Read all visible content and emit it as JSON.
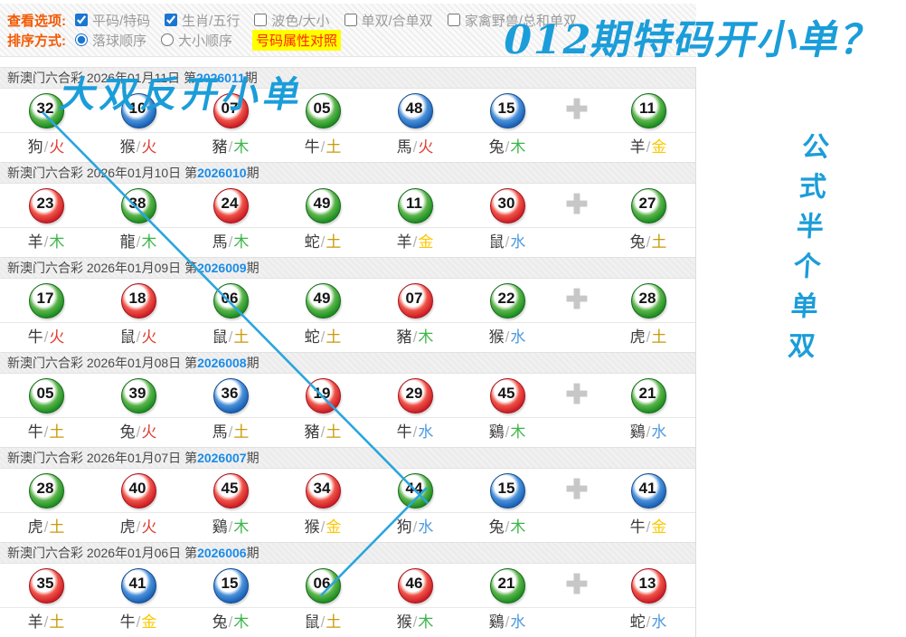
{
  "options": {
    "view_caption": "查看选项:",
    "view_items": [
      {
        "label": "平码/特码",
        "checked": true
      },
      {
        "label": "生肖/五行",
        "checked": true
      },
      {
        "label": "波色/大小",
        "checked": false
      },
      {
        "label": "单双/合单双",
        "checked": false
      },
      {
        "label": "家禽野兽/总和单双",
        "checked": false
      }
    ],
    "sort_caption": "排序方式:",
    "sort_items": [
      {
        "label": "落球顺序",
        "selected": true
      },
      {
        "label": "大小顺序",
        "selected": false
      }
    ],
    "attr_link_label": "号码属性对照"
  },
  "annotations": {
    "top_note": "012期特码开小单？",
    "row1_note": "大双反开小单",
    "vertical_note": "公式半个单双",
    "ink_color": "#29a5de"
  },
  "icons": {
    "plus_icon": "✚"
  },
  "colors": {
    "ball_red": "#cf2028",
    "ball_green": "#1f9122",
    "ball_blue": "#1c64b8",
    "period_blue": "#1a8ce8",
    "caption_orange": "#f25a05",
    "link_red_on_yellow": "#ff2400",
    "link_bg": "#ffff00"
  },
  "element_colors": {
    "火": "#e03c31",
    "木": "#3cb549",
    "土": "#c99a06",
    "金": "#fcc800",
    "水": "#4d9ae0"
  },
  "draws": [
    {
      "title_prefix": "新澳门六合彩 2026年01月11日 第",
      "period": "2026011",
      "title_suffix": "期",
      "balls": [
        {
          "num": "32",
          "color": "green",
          "animal": "狗",
          "element": "火"
        },
        {
          "num": "10",
          "color": "blue",
          "animal": "猴",
          "element": "火"
        },
        {
          "num": "07",
          "color": "red",
          "animal": "豬",
          "element": "木"
        },
        {
          "num": "05",
          "color": "green",
          "animal": "牛",
          "element": "土"
        },
        {
          "num": "48",
          "color": "blue",
          "animal": "馬",
          "element": "火"
        },
        {
          "num": "15",
          "color": "blue",
          "animal": "兔",
          "element": "木"
        }
      ],
      "special": {
        "num": "11",
        "color": "green",
        "animal": "羊",
        "element": "金"
      }
    },
    {
      "title_prefix": "新澳门六合彩 2026年01月10日 第",
      "period": "2026010",
      "title_suffix": "期",
      "balls": [
        {
          "num": "23",
          "color": "red",
          "animal": "羊",
          "element": "木"
        },
        {
          "num": "38",
          "color": "green",
          "animal": "龍",
          "element": "木"
        },
        {
          "num": "24",
          "color": "red",
          "animal": "馬",
          "element": "木"
        },
        {
          "num": "49",
          "color": "green",
          "animal": "蛇",
          "element": "土"
        },
        {
          "num": "11",
          "color": "green",
          "animal": "羊",
          "element": "金"
        },
        {
          "num": "30",
          "color": "red",
          "animal": "鼠",
          "element": "水"
        }
      ],
      "special": {
        "num": "27",
        "color": "green",
        "animal": "兔",
        "element": "土"
      }
    },
    {
      "title_prefix": "新澳门六合彩 2026年01月09日 第",
      "period": "2026009",
      "title_suffix": "期",
      "balls": [
        {
          "num": "17",
          "color": "green",
          "animal": "牛",
          "element": "火"
        },
        {
          "num": "18",
          "color": "red",
          "animal": "鼠",
          "element": "火"
        },
        {
          "num": "06",
          "color": "green",
          "animal": "鼠",
          "element": "土"
        },
        {
          "num": "49",
          "color": "green",
          "animal": "蛇",
          "element": "土"
        },
        {
          "num": "07",
          "color": "red",
          "animal": "豬",
          "element": "木"
        },
        {
          "num": "22",
          "color": "green",
          "animal": "猴",
          "element": "水"
        }
      ],
      "special": {
        "num": "28",
        "color": "green",
        "animal": "虎",
        "element": "土"
      }
    },
    {
      "title_prefix": "新澳门六合彩 2026年01月08日 第",
      "period": "2026008",
      "title_suffix": "期",
      "balls": [
        {
          "num": "05",
          "color": "green",
          "animal": "牛",
          "element": "土"
        },
        {
          "num": "39",
          "color": "green",
          "animal": "兔",
          "element": "火"
        },
        {
          "num": "36",
          "color": "blue",
          "animal": "馬",
          "element": "土"
        },
        {
          "num": "19",
          "color": "red",
          "animal": "豬",
          "element": "土"
        },
        {
          "num": "29",
          "color": "red",
          "animal": "牛",
          "element": "水"
        },
        {
          "num": "45",
          "color": "red",
          "animal": "鷄",
          "element": "木"
        }
      ],
      "special": {
        "num": "21",
        "color": "green",
        "animal": "鷄",
        "element": "水"
      }
    },
    {
      "title_prefix": "新澳门六合彩 2026年01月07日 第",
      "period": "2026007",
      "title_suffix": "期",
      "balls": [
        {
          "num": "28",
          "color": "green",
          "animal": "虎",
          "element": "土"
        },
        {
          "num": "40",
          "color": "red",
          "animal": "虎",
          "element": "火"
        },
        {
          "num": "45",
          "color": "red",
          "animal": "鷄",
          "element": "木"
        },
        {
          "num": "34",
          "color": "red",
          "animal": "猴",
          "element": "金"
        },
        {
          "num": "44",
          "color": "green",
          "animal": "狗",
          "element": "水"
        },
        {
          "num": "15",
          "color": "blue",
          "animal": "兔",
          "element": "木"
        }
      ],
      "special": {
        "num": "41",
        "color": "blue",
        "animal": "牛",
        "element": "金"
      }
    },
    {
      "title_prefix": "新澳门六合彩 2026年01月06日 第",
      "period": "2026006",
      "title_suffix": "期",
      "balls": [
        {
          "num": "35",
          "color": "red",
          "animal": "羊",
          "element": "土"
        },
        {
          "num": "41",
          "color": "blue",
          "animal": "牛",
          "element": "金"
        },
        {
          "num": "15",
          "color": "blue",
          "animal": "兔",
          "element": "木"
        },
        {
          "num": "06",
          "color": "green",
          "animal": "鼠",
          "element": "土"
        },
        {
          "num": "46",
          "color": "red",
          "animal": "猴",
          "element": "木"
        },
        {
          "num": "21",
          "color": "green",
          "animal": "鷄",
          "element": "水"
        }
      ],
      "special": {
        "num": "13",
        "color": "red",
        "animal": "蛇",
        "element": "水"
      }
    }
  ]
}
